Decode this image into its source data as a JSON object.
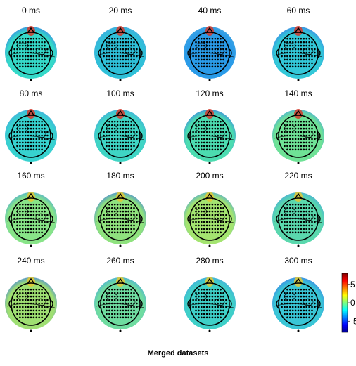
{
  "chart_data": {
    "type": "heatmap",
    "title": "Merged datasets",
    "colormap": "jet",
    "panels": [
      {
        "label": "0 ms"
      },
      {
        "label": "20 ms"
      },
      {
        "label": "40 ms"
      },
      {
        "label": "60 ms"
      },
      {
        "label": "80 ms"
      },
      {
        "label": "100 ms"
      },
      {
        "label": "120 ms"
      },
      {
        "label": "140 ms"
      },
      {
        "label": "160 ms"
      },
      {
        "label": "180 ms"
      },
      {
        "label": "200 ms"
      },
      {
        "label": "220 ms"
      },
      {
        "label": "240 ms"
      },
      {
        "label": "260 ms"
      },
      {
        "label": "280 ms"
      },
      {
        "label": "300 ms"
      }
    ],
    "colorbar": {
      "range": [
        -8,
        8
      ],
      "ticks": [
        {
          "value": 5,
          "label": "5"
        },
        {
          "value": 0,
          "label": "0"
        },
        {
          "value": -5,
          "label": "-5"
        }
      ]
    }
  }
}
